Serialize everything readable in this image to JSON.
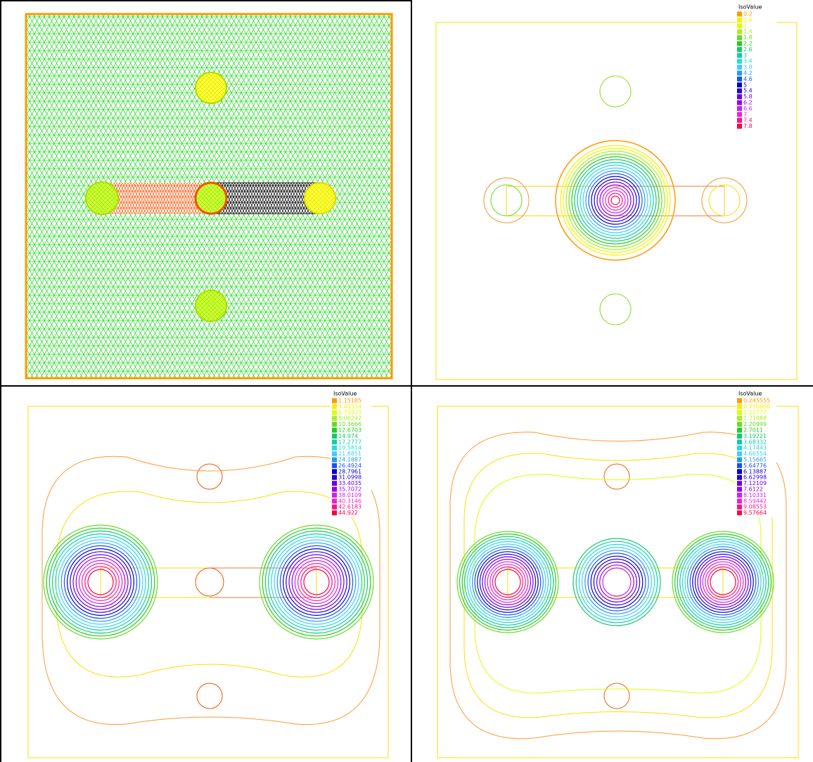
{
  "legend_colors": [
    "#ff9900",
    "#ffee00",
    "#ddff00",
    "#aaee22",
    "#66dd22",
    "#22cc22",
    "#11cc66",
    "#11ccaa",
    "#22dddd",
    "#44ccff",
    "#2299ff",
    "#1155ff",
    "#0000cc",
    "#2200dd",
    "#6600ee",
    "#9900ee",
    "#cc22ee",
    "#ee22cc",
    "#ff1188",
    "#ff0044"
  ],
  "plots": [
    {
      "legend_title": "IsoValue",
      "iso_values": [
        "0.2",
        "0.6",
        "1",
        "1.4",
        "1.8",
        "2.2",
        "2.6",
        "3",
        "3.4",
        "3.8",
        "4.2",
        "4.6",
        "5",
        "5.4",
        "5.8",
        "6.2",
        "6.6",
        "7",
        "7.4",
        "7.8"
      ]
    },
    {
      "legend_title": "IsoValue",
      "iso_values": [
        "1.15185",
        "3.45554",
        "5.75923",
        "8.06292",
        "10.3666",
        "12.6703",
        "14.974",
        "17.2777",
        "19.5814",
        "21.8851",
        "24.1887",
        "26.4924",
        "28.7961",
        "31.0998",
        "33.4035",
        "35.7072",
        "38.0109",
        "40.3146",
        "42.6183",
        "44.922"
      ]
    },
    {
      "legend_title": "IsoValue",
      "iso_values": [
        "0.245555",
        "0.736666",
        "1.22777",
        "1.71888",
        "2.20999",
        "2.7011",
        "3.19221",
        "3.68332",
        "4.17443",
        "4.66554",
        "5.15665",
        "5.64776",
        "6.13887",
        "6.62998",
        "7.12109",
        "7.6122",
        "8.10331",
        "8.59442",
        "9.08553",
        "9.57664"
      ]
    }
  ]
}
